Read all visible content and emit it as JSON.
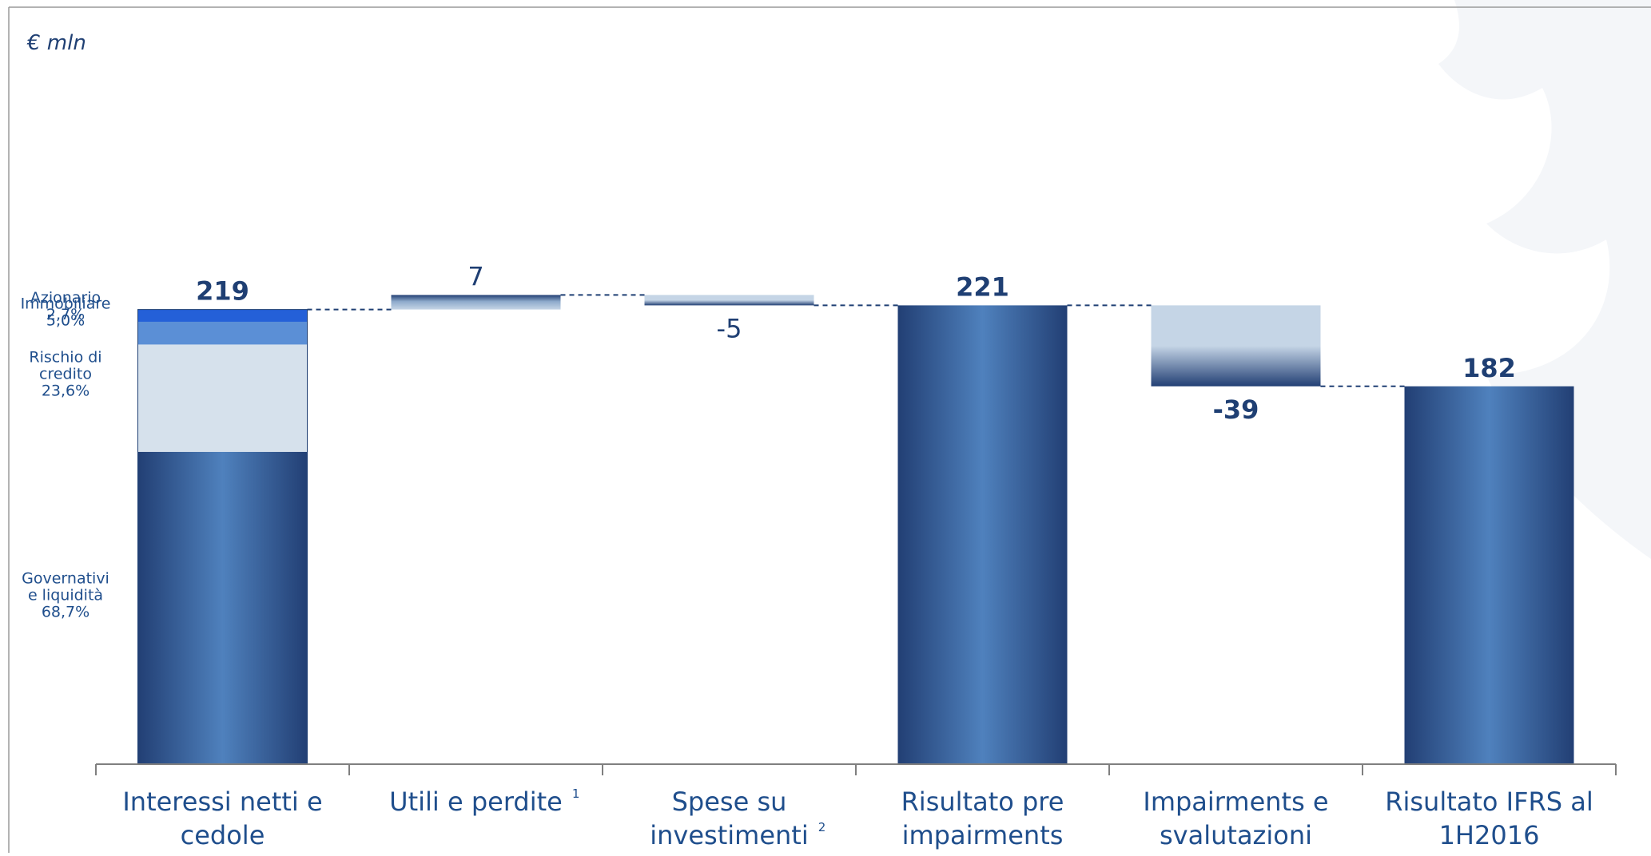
{
  "chart_data": {
    "type": "bar",
    "subtype": "waterfall",
    "unit_label": "€ mln",
    "categories": [
      {
        "lines": [
          "Interessi netti e",
          "cedole"
        ],
        "sup": ""
      },
      {
        "lines": [
          "Utili e perdite"
        ],
        "sup": "1"
      },
      {
        "lines": [
          "Spese su",
          "investimenti"
        ],
        "sup": "2"
      },
      {
        "lines": [
          "Risultato pre",
          "impairments"
        ],
        "sup": ""
      },
      {
        "lines": [
          "Impairments e",
          "svalutazioni"
        ],
        "sup": ""
      },
      {
        "lines": [
          "Risultato IFRS al",
          "1H2016"
        ],
        "sup": ""
      }
    ],
    "steps": [
      {
        "kind": "total",
        "start": 0,
        "end": 219,
        "label": "219",
        "bold": true
      },
      {
        "kind": "delta",
        "start": 219,
        "end": 226,
        "label": "7",
        "bold": false
      },
      {
        "kind": "delta",
        "start": 226,
        "end": 221,
        "label": "-5",
        "bold": false
      },
      {
        "kind": "total",
        "start": 0,
        "end": 221,
        "label": "221",
        "bold": true
      },
      {
        "kind": "delta",
        "start": 221,
        "end": 182,
        "label": "-39",
        "bold": true
      },
      {
        "kind": "total",
        "start": 0,
        "end": 182,
        "label": "182",
        "bold": true
      }
    ],
    "breakdown": {
      "segments": [
        {
          "name": "Governativi e liquidità",
          "lines": [
            "Governativi",
            "e liquidità",
            "68,7%"
          ],
          "share": 0.687,
          "color": "#2a5592"
        },
        {
          "name": "Rischio di credito",
          "lines": [
            "Rischio di",
            "credito",
            "23,6%"
          ],
          "share": 0.236,
          "color": "#d6e1ec"
        },
        {
          "name": "Immobiliare",
          "lines": [
            "Immobiliare",
            "5,0%"
          ],
          "share": 0.05,
          "color": "#5b8fd6"
        },
        {
          "name": "Azionario",
          "lines": [
            "Azionario",
            "2,7%"
          ],
          "share": 0.027,
          "color": "#2460d8"
        }
      ]
    },
    "ylim": [
      0,
      230
    ],
    "colors": {
      "total_dark": "#223f74",
      "total_light": "#4f81bd",
      "delta_light": "#c5d5e6",
      "delta_dark": "#223f74",
      "connector": "#1f3f73",
      "text": "#1f4e8c"
    }
  }
}
